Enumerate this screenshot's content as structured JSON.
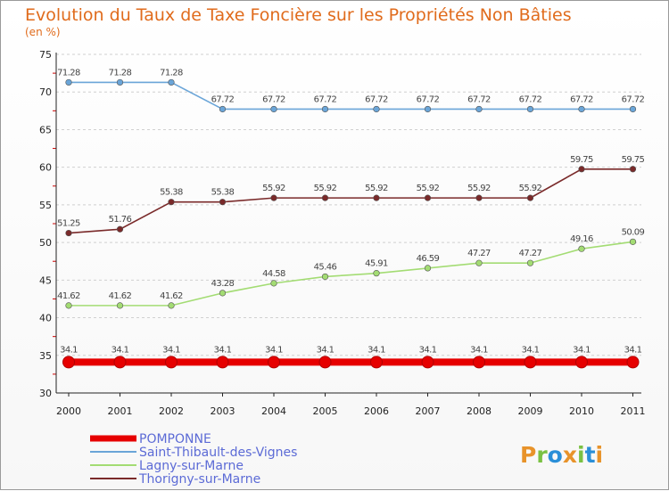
{
  "chart_data": {
    "type": "line",
    "title": "Evolution du Taux de Taxe Foncière sur les Propriétés Non Bâties",
    "subtitle": "(en %)",
    "x": [
      "2000",
      "2001",
      "2002",
      "2003",
      "2004",
      "2005",
      "2006",
      "2007",
      "2008",
      "2009",
      "2010",
      "2011"
    ],
    "ylim": [
      30,
      75
    ],
    "yticks": [
      30,
      35,
      40,
      45,
      50,
      55,
      60,
      65,
      70,
      75
    ],
    "series": [
      {
        "name": "POMPONNE",
        "color": "#e60000",
        "values": [
          34.1,
          34.1,
          34.1,
          34.1,
          34.1,
          34.1,
          34.1,
          34.1,
          34.1,
          34.1,
          34.1,
          34.1
        ],
        "labels": [
          "34.1",
          "34.1",
          "34.1",
          "34.1",
          "34.1",
          "34.1",
          "34.1",
          "34.1",
          "34.1",
          "34.1",
          "34.1",
          "34.1"
        ]
      },
      {
        "name": "Saint-Thibault-des-Vignes",
        "color": "#6aa5d8",
        "values": [
          71.28,
          71.28,
          71.28,
          67.72,
          67.72,
          67.72,
          67.72,
          67.72,
          67.72,
          67.72,
          67.72,
          67.72
        ],
        "labels": [
          "71.28",
          "71.28",
          "71.28",
          "67.72",
          "67.72",
          "67.72",
          "67.72",
          "67.72",
          "67.72",
          "67.72",
          "67.72",
          "67.72"
        ]
      },
      {
        "name": "Lagny-sur-Marne",
        "color": "#a3dc73",
        "values": [
          41.62,
          41.62,
          41.62,
          43.28,
          44.58,
          45.46,
          45.91,
          46.59,
          47.27,
          47.27,
          49.16,
          50.09
        ],
        "labels": [
          "41.62",
          "41.62",
          "41.62",
          "43.28",
          "44.58",
          "45.46",
          "45.91",
          "46.59",
          "47.27",
          "47.27",
          "49.16",
          "50.09"
        ]
      },
      {
        "name": "Thorigny-sur-Marne",
        "color": "#7a2a2a",
        "values": [
          51.25,
          51.76,
          55.38,
          55.38,
          55.92,
          55.92,
          55.92,
          55.92,
          55.92,
          55.92,
          59.75,
          59.75
        ],
        "labels": [
          "51.25",
          "51.76",
          "55.38",
          "55.38",
          "55.92",
          "55.92",
          "55.92",
          "55.92",
          "55.92",
          "55.92",
          "59.75",
          "59.75"
        ]
      }
    ],
    "legend_position": "bottom-left"
  },
  "logo": {
    "letters": [
      "P",
      "r",
      "o",
      "x",
      "i",
      "t",
      "i"
    ],
    "colors": [
      "#e8932a",
      "#7ac143",
      "#2a8fd8",
      "#e8932a",
      "#7ac143",
      "#2a8fd8",
      "#e8932a"
    ]
  }
}
